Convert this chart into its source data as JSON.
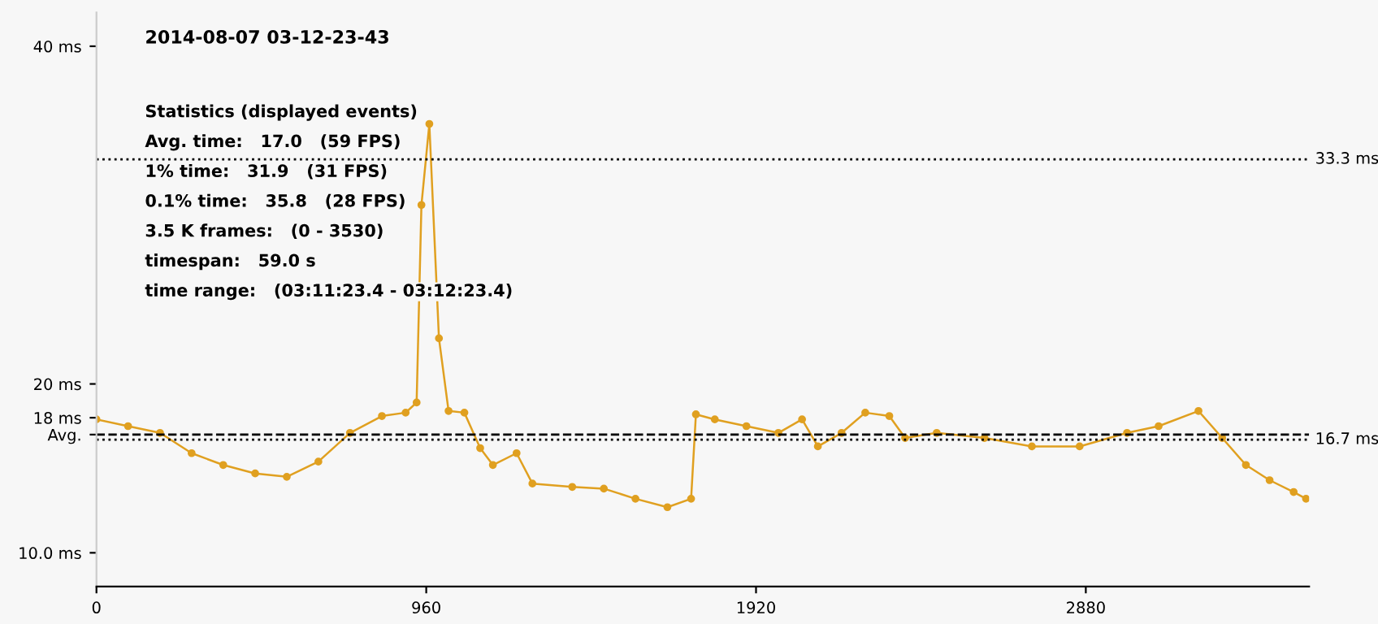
{
  "chart_data": {
    "type": "line",
    "title": "2014-08-07 03-12-23-43",
    "annotations": [
      "Statistics (displayed events)",
      "Avg. time:   17.0   (59 FPS)",
      "1% time:   31.9   (31 FPS)",
      "0.1% time:   35.8   (28 FPS)",
      "3.5 K frames:   (0 - 3530)",
      "timespan:   59.0 s",
      "time range:   (03:11:23.4 - 03:12:23.4)"
    ],
    "series": [
      {
        "color": "#e0a020",
        "x": [
          0,
          92,
          185,
          277,
          369,
          462,
          554,
          646,
          738,
          831,
          900,
          932,
          946,
          969,
          997,
          1025,
          1071,
          1117,
          1154,
          1223,
          1269,
          1385,
          1477,
          1569,
          1662,
          1731,
          1745,
          1800,
          1892,
          1985,
          2054,
          2100,
          2169,
          2238,
          2308,
          2354,
          2446,
          2585,
          2723,
          2862,
          3000,
          3092,
          3208,
          3277,
          3346,
          3415,
          3485,
          3521
        ],
        "values": [
          17.9,
          17.5,
          17.1,
          15.9,
          15.2,
          14.7,
          14.5,
          15.4,
          17.1,
          18.1,
          18.3,
          18.9,
          30.6,
          35.4,
          22.7,
          18.4,
          18.3,
          16.2,
          15.2,
          15.9,
          14.1,
          13.9,
          13.8,
          13.2,
          12.7,
          13.2,
          18.2,
          17.9,
          17.5,
          17.1,
          17.9,
          16.3,
          17.1,
          18.3,
          18.1,
          16.8,
          17.1,
          16.8,
          16.3,
          16.3,
          17.1,
          17.5,
          18.4,
          16.8,
          15.2,
          14.3,
          13.6,
          13.2
        ]
      }
    ],
    "xlim": [
      0,
      3530
    ],
    "xticks": [
      0,
      960,
      1920,
      2880
    ],
    "ylim": [
      8,
      42
    ],
    "yticks": [
      {
        "value": 10,
        "label": "10.0 ms"
      },
      {
        "value": 17.0,
        "label": "Avg."
      },
      {
        "value": 18,
        "label": "18 ms"
      },
      {
        "value": 20,
        "label": "20 ms"
      },
      {
        "value": 40,
        "label": "40 ms"
      }
    ],
    "ref_lines": [
      {
        "axis": "y",
        "value": 33.3,
        "label": "33.3 ms",
        "line_style": "dotted",
        "color": "#000000"
      },
      {
        "axis": "y",
        "value": 16.7,
        "label": "16.7 ms",
        "line_style": "dotted",
        "color": "#000000"
      },
      {
        "axis": "y",
        "value": 17.0,
        "label": null,
        "line_style": "dashed",
        "color": "#000000"
      }
    ],
    "marker": "circle",
    "line_style": "solid",
    "grid": false,
    "legend": false
  }
}
